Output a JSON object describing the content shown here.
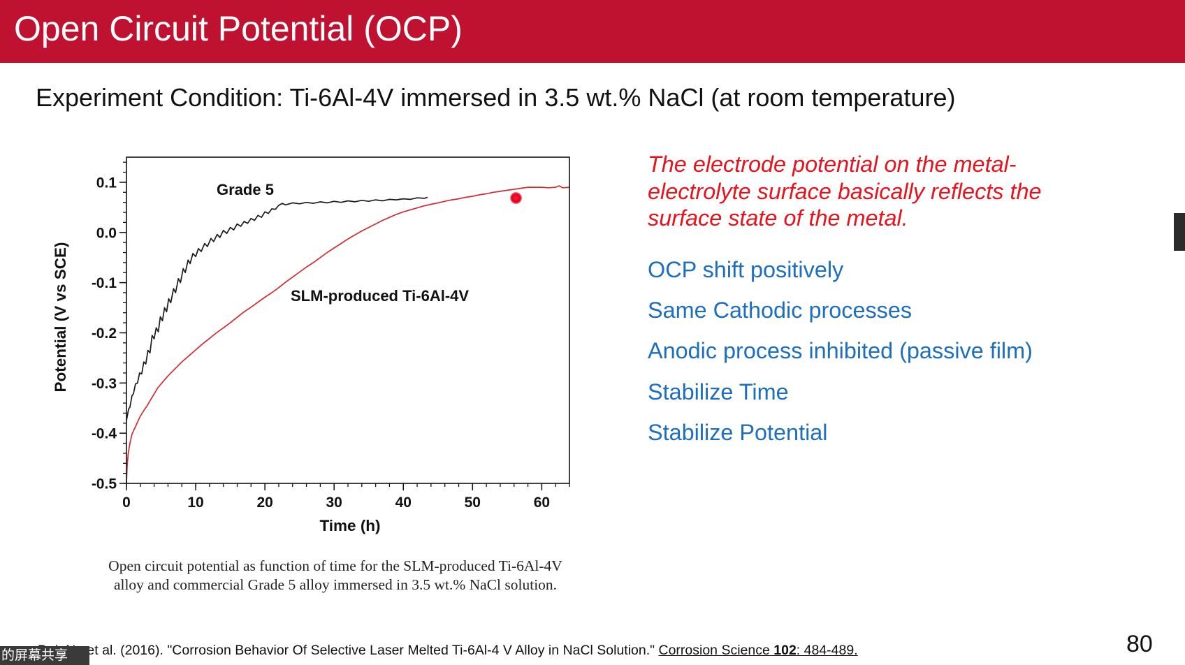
{
  "slide": {
    "title": "Open Circuit Potential (OCP)",
    "subtitle": "Experiment Condition: Ti-6Al-4V immersed in 3.5 wt.% NaCl (at room temperature)",
    "page_number": "80",
    "colors": {
      "header": "#BE1230",
      "emphasis": "#E8121C",
      "points": "#1E6EBE"
    }
  },
  "figure": {
    "caption_lines": [
      "Open circuit potential as function of time for the SLM-produced Ti-6Al-4V",
      "alloy and commercial Grade 5 alloy immersed in 3.5 wt.% NaCl solution."
    ]
  },
  "notes": {
    "statement": [
      "The electrode potential on the metal-",
      "electrolyte surface basically reflects the",
      "surface state of the metal."
    ],
    "points": [
      "OCP shift positively",
      "Same Cathodic processes",
      "Anodic process inhibited (passive film)",
      "Stabilize Time",
      "Stabilize Potential"
    ]
  },
  "reference": {
    "authors_year": "Dai, N., et al. (2016).",
    "title": "\"Corrosion Behavior Of Selective Laser Melted Ti-6Al-4 V Alloy in NaCl Solution.\"",
    "journal": "Corrosion Science",
    "volume": "102",
    "pages": ": 484-489."
  },
  "screen_share_overlay": {
    "label": "的屏幕共享"
  },
  "chart_data": {
    "type": "line",
    "xlabel": "Time (h)",
    "ylabel": "Potential (V vs SCE)",
    "xlim": [
      0,
      64
    ],
    "ylim": [
      -0.5,
      0.15
    ],
    "x_ticks": [
      0,
      10,
      20,
      30,
      40,
      50,
      60
    ],
    "x_tick_labels": [
      "0",
      "10",
      "20",
      "30",
      "40",
      "50",
      "60"
    ],
    "y_ticks": [
      0.1,
      0.0,
      -0.1,
      -0.2,
      -0.3,
      -0.4,
      -0.5
    ],
    "y_tick_labels": [
      "0.1",
      "0.0",
      "-0.1",
      "-0.2",
      "-0.3",
      "-0.4",
      "-0.5"
    ],
    "grid": false,
    "legend": "none",
    "series": [
      {
        "name": "Grade 5",
        "color": "#1a1a1a",
        "points": [
          [
            0,
            -0.375
          ],
          [
            0.3,
            -0.352
          ],
          [
            0.5,
            -0.348
          ],
          [
            0.8,
            -0.325
          ],
          [
            1.0,
            -0.322
          ],
          [
            1.3,
            -0.302
          ],
          [
            1.6,
            -0.3
          ],
          [
            1.9,
            -0.28
          ],
          [
            2.2,
            -0.282
          ],
          [
            2.5,
            -0.258
          ],
          [
            2.8,
            -0.262
          ],
          [
            3.1,
            -0.235
          ],
          [
            3.4,
            -0.24
          ],
          [
            3.7,
            -0.205
          ],
          [
            4.0,
            -0.212
          ],
          [
            4.3,
            -0.19
          ],
          [
            4.6,
            -0.198
          ],
          [
            4.9,
            -0.168
          ],
          [
            5.2,
            -0.176
          ],
          [
            5.5,
            -0.15
          ],
          [
            5.8,
            -0.158
          ],
          [
            6.1,
            -0.132
          ],
          [
            6.4,
            -0.14
          ],
          [
            6.8,
            -0.112
          ],
          [
            7.1,
            -0.12
          ],
          [
            7.5,
            -0.092
          ],
          [
            7.8,
            -0.1
          ],
          [
            8.2,
            -0.072
          ],
          [
            8.5,
            -0.08
          ],
          [
            8.9,
            -0.055
          ],
          [
            9.2,
            -0.062
          ],
          [
            9.6,
            -0.042
          ],
          [
            10.0,
            -0.048
          ],
          [
            10.4,
            -0.032
          ],
          [
            10.8,
            -0.038
          ],
          [
            11.3,
            -0.022
          ],
          [
            11.7,
            -0.028
          ],
          [
            12.2,
            -0.012
          ],
          [
            12.6,
            -0.018
          ],
          [
            13.1,
            -0.004
          ],
          [
            13.5,
            -0.01
          ],
          [
            14.0,
            0.004
          ],
          [
            14.5,
            -0.002
          ],
          [
            15.0,
            0.01
          ],
          [
            15.5,
            0.005
          ],
          [
            16.0,
            0.017
          ],
          [
            16.5,
            0.012
          ],
          [
            17.0,
            0.022
          ],
          [
            17.5,
            0.018
          ],
          [
            18.0,
            0.028
          ],
          [
            18.5,
            0.024
          ],
          [
            19.0,
            0.034
          ],
          [
            19.5,
            0.03
          ],
          [
            20.0,
            0.041
          ],
          [
            20.5,
            0.038
          ],
          [
            21.0,
            0.047
          ],
          [
            21.5,
            0.046
          ],
          [
            22.0,
            0.054
          ],
          [
            22.5,
            0.058
          ],
          [
            23.0,
            0.055
          ],
          [
            24.0,
            0.059
          ],
          [
            25.0,
            0.057
          ],
          [
            26.0,
            0.06
          ],
          [
            27.0,
            0.058
          ],
          [
            28.0,
            0.061
          ],
          [
            29.0,
            0.059
          ],
          [
            30.0,
            0.062
          ],
          [
            31.0,
            0.06
          ],
          [
            32.0,
            0.063
          ],
          [
            33.0,
            0.061
          ],
          [
            34.0,
            0.064
          ],
          [
            35.0,
            0.062
          ],
          [
            36.0,
            0.065
          ],
          [
            37.0,
            0.063
          ],
          [
            38.0,
            0.066
          ],
          [
            39.0,
            0.065
          ],
          [
            40.0,
            0.067
          ],
          [
            41.0,
            0.066
          ],
          [
            42.0,
            0.069
          ],
          [
            43.0,
            0.068
          ],
          [
            43.5,
            0.07
          ]
        ]
      },
      {
        "name": "SLM-produced Ti-6Al-4V",
        "color": "#d42a2f",
        "points": [
          [
            0,
            -0.5
          ],
          [
            0.1,
            -0.465
          ],
          [
            0.25,
            -0.44
          ],
          [
            0.5,
            -0.42
          ],
          [
            0.8,
            -0.402
          ],
          [
            1.2,
            -0.39
          ],
          [
            1.6,
            -0.378
          ],
          [
            2,
            -0.366
          ],
          [
            2.5,
            -0.355
          ],
          [
            3,
            -0.345
          ],
          [
            3.5,
            -0.333
          ],
          [
            4,
            -0.322
          ],
          [
            4.5,
            -0.31
          ],
          [
            5,
            -0.302
          ],
          [
            6,
            -0.286
          ],
          [
            7,
            -0.272
          ],
          [
            8,
            -0.258
          ],
          [
            9,
            -0.246
          ],
          [
            10,
            -0.234
          ],
          [
            11,
            -0.222
          ],
          [
            12,
            -0.211
          ],
          [
            13,
            -0.2
          ],
          [
            14,
            -0.19
          ],
          [
            15,
            -0.18
          ],
          [
            16,
            -0.169
          ],
          [
            17,
            -0.158
          ],
          [
            18,
            -0.149
          ],
          [
            19,
            -0.139
          ],
          [
            20,
            -0.129
          ],
          [
            21,
            -0.12
          ],
          [
            22,
            -0.11
          ],
          [
            23,
            -0.099
          ],
          [
            24,
            -0.089
          ],
          [
            25,
            -0.079
          ],
          [
            26,
            -0.069
          ],
          [
            27,
            -0.06
          ],
          [
            28,
            -0.05
          ],
          [
            29,
            -0.04
          ],
          [
            30,
            -0.031
          ],
          [
            31,
            -0.022
          ],
          [
            32,
            -0.013
          ],
          [
            33,
            -0.005
          ],
          [
            34,
            0.003
          ],
          [
            35,
            0.01
          ],
          [
            36,
            0.017
          ],
          [
            37,
            0.024
          ],
          [
            38,
            0.03
          ],
          [
            39,
            0.036
          ],
          [
            40,
            0.041
          ],
          [
            41,
            0.045
          ],
          [
            42,
            0.049
          ],
          [
            43,
            0.053
          ],
          [
            44,
            0.056
          ],
          [
            45,
            0.059
          ],
          [
            46,
            0.062
          ],
          [
            47,
            0.065
          ],
          [
            48,
            0.067
          ],
          [
            49,
            0.07
          ],
          [
            50,
            0.072
          ],
          [
            51,
            0.075
          ],
          [
            52,
            0.077
          ],
          [
            53,
            0.08
          ],
          [
            54,
            0.082
          ],
          [
            55,
            0.084
          ],
          [
            56,
            0.086
          ],
          [
            57,
            0.088
          ],
          [
            58,
            0.09
          ],
          [
            59,
            0.09
          ],
          [
            60,
            0.09
          ],
          [
            61,
            0.089
          ],
          [
            62,
            0.09
          ],
          [
            62.5,
            0.093
          ],
          [
            63,
            0.089
          ],
          [
            64,
            0.09
          ]
        ]
      }
    ]
  }
}
